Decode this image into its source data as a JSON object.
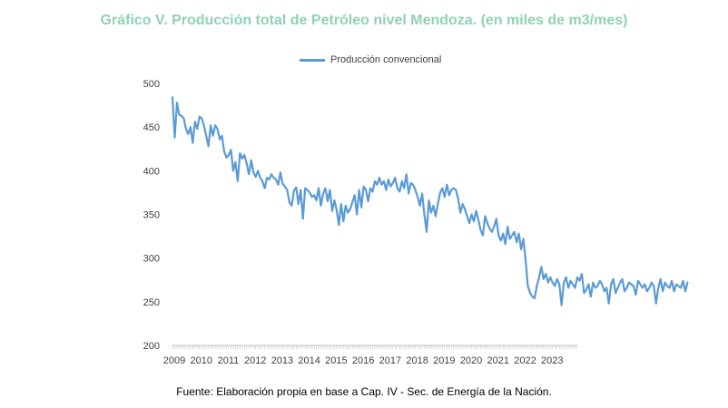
{
  "chart_data": {
    "type": "line",
    "title": "Gráfico V. Producción total de Petróleo nivel Mendoza. (en miles de m3/mes)",
    "series": [
      {
        "name": "Producción convencional",
        "color": "#5b9bd5",
        "values": [
          484,
          438,
          478,
          464,
          463,
          460,
          448,
          442,
          450,
          432,
          456,
          448,
          462,
          460,
          452,
          440,
          428,
          452,
          440,
          452,
          448,
          436,
          440,
          422,
          415,
          418,
          424,
          400,
          410,
          388,
          420,
          414,
          418,
          408,
          396,
          412,
          398,
          393,
          400,
          392,
          388,
          380,
          392,
          390,
          396,
          392,
          390,
          384,
          398,
          385,
          382,
          378,
          364,
          360,
          377,
          381,
          362,
          378,
          345,
          380,
          378,
          375,
          370,
          372,
          366,
          380,
          360,
          374,
          380,
          365,
          378,
          354,
          366,
          355,
          338,
          362,
          342,
          360,
          352,
          356,
          364,
          372,
          350,
          378,
          358,
          382,
          378,
          365,
          380,
          376,
          388,
          384,
          392,
          384,
          388,
          378,
          390,
          382,
          386,
          392,
          380,
          376,
          388,
          380,
          396,
          374,
          386,
          384,
          378,
          370,
          360,
          374,
          350,
          330,
          366,
          352,
          360,
          348,
          362,
          375,
          380,
          370,
          384,
          372,
          378,
          380,
          378,
          368,
          352,
          362,
          356,
          348,
          340,
          350,
          342,
          354,
          344,
          332,
          326,
          348,
          340,
          334,
          330,
          336,
          345,
          326,
          320,
          328,
          316,
          336,
          322,
          326,
          330,
          318,
          328,
          310,
          322,
          298,
          268,
          260,
          256,
          254,
          268,
          278,
          290,
          276,
          282,
          272,
          278,
          272,
          268,
          276,
          270,
          246,
          272,
          278,
          266,
          274,
          270,
          266,
          278,
          274,
          282,
          260,
          264,
          270,
          256,
          272,
          266,
          268,
          274,
          270,
          262,
          266,
          248,
          270,
          276,
          260,
          266,
          272,
          276,
          262,
          266,
          272,
          270,
          268,
          258,
          274,
          270,
          266,
          270,
          262,
          266,
          272,
          268,
          248,
          266,
          276,
          262,
          272,
          268,
          266,
          274,
          262,
          270,
          268,
          266,
          274,
          262,
          272
        ],
        "note": "Monthly values, January 2009 to roughly October 2023, estimated from the plotted line"
      }
    ],
    "x_ticks": [
      "2009",
      "2010",
      "2011",
      "2012",
      "2013",
      "2014",
      "2015",
      "2016",
      "2017",
      "2018",
      "2019",
      "2020",
      "2021",
      "2022",
      "2023"
    ],
    "y_ticks": [
      "500",
      "450",
      "400",
      "350",
      "300",
      "250",
      "200"
    ],
    "ylim": [
      200,
      500
    ],
    "xlabel": "",
    "ylabel": "",
    "legend_position": "top-center",
    "grid": false
  },
  "source": "Fuente: Elaboración propia en base a Cap. IV -  Sec. de Energía de la Nación."
}
